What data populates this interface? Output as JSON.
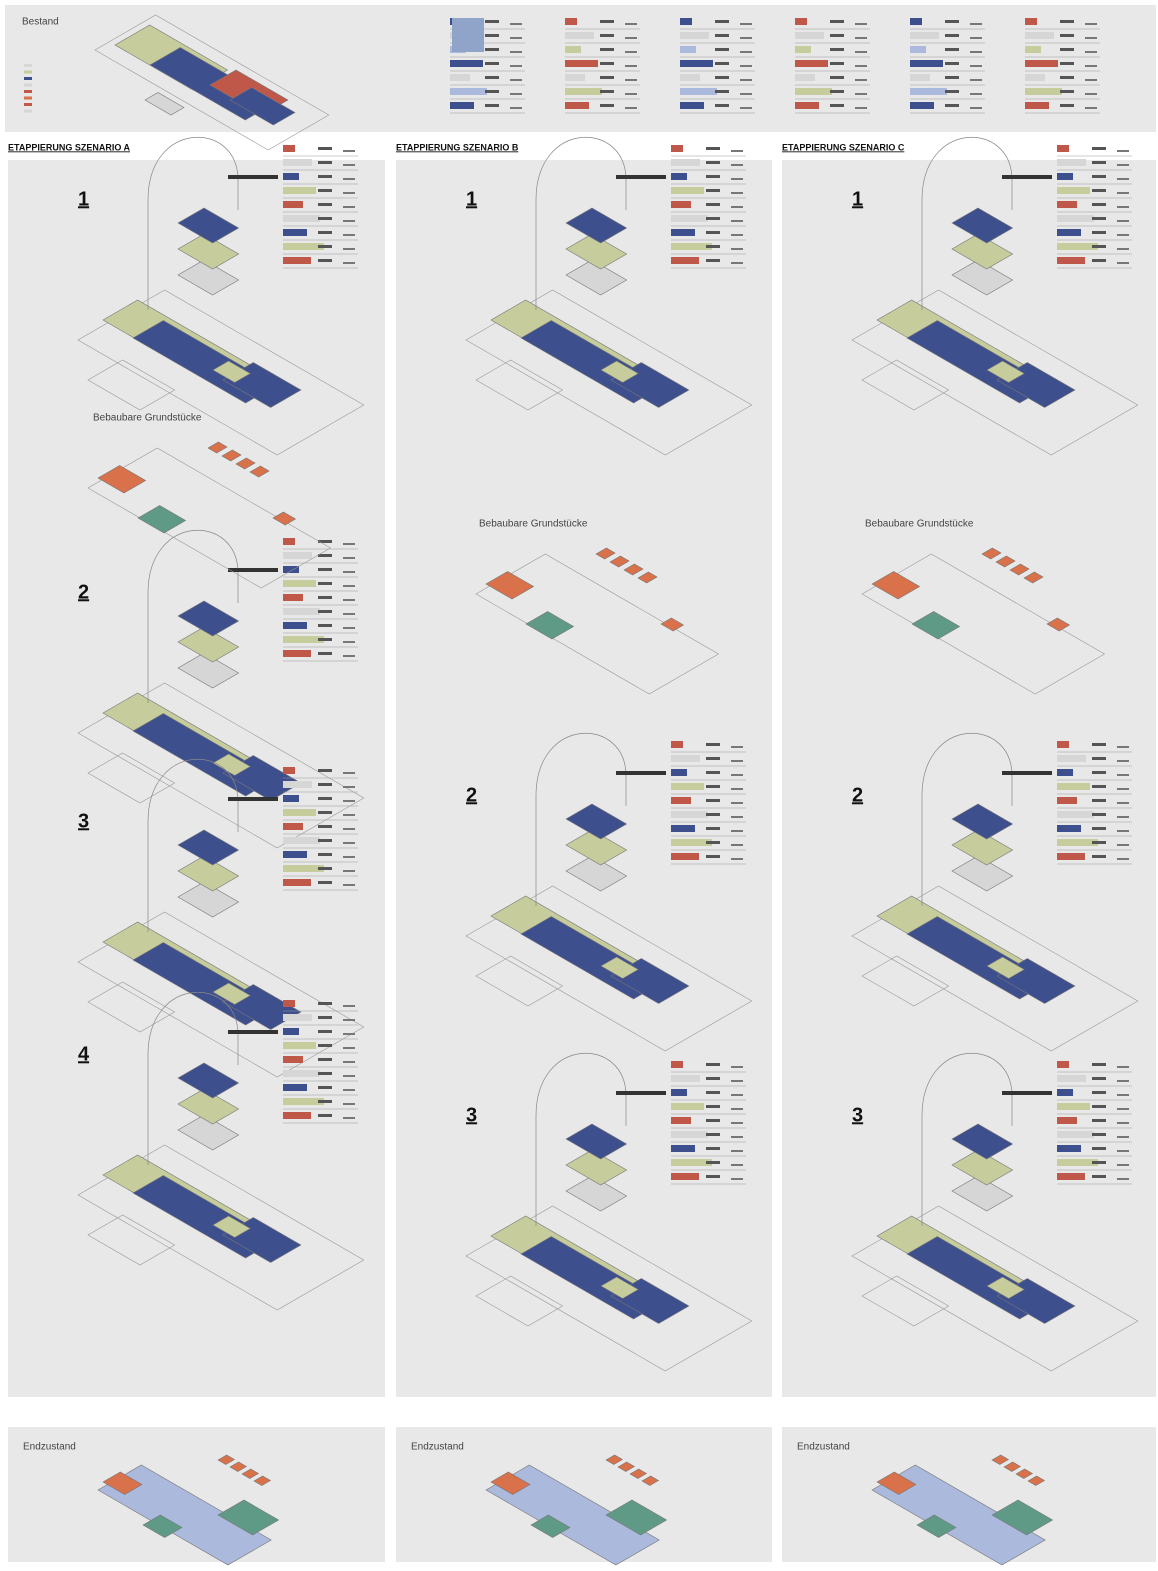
{
  "header": {
    "title": "Bestand"
  },
  "scenarios": [
    {
      "title": "ETAPPIERUNG SZENARIO A",
      "steps": [
        "1",
        "2",
        "3",
        "4"
      ],
      "plots_label": "Bebaubare Grundstücke"
    },
    {
      "title": "ETAPPIERUNG SZENARIO B",
      "steps": [
        "1",
        "2",
        "3"
      ],
      "plots_label": "Bebaubare Grundstücke"
    },
    {
      "title": "ETAPPIERUNG SZENARIO C",
      "steps": [
        "1",
        "2",
        "3"
      ],
      "plots_label": "Bebaubare Grundstücke"
    }
  ],
  "final": [
    {
      "label": "Endzustand"
    },
    {
      "label": "Endzustand"
    },
    {
      "label": "Endzustand"
    }
  ]
}
